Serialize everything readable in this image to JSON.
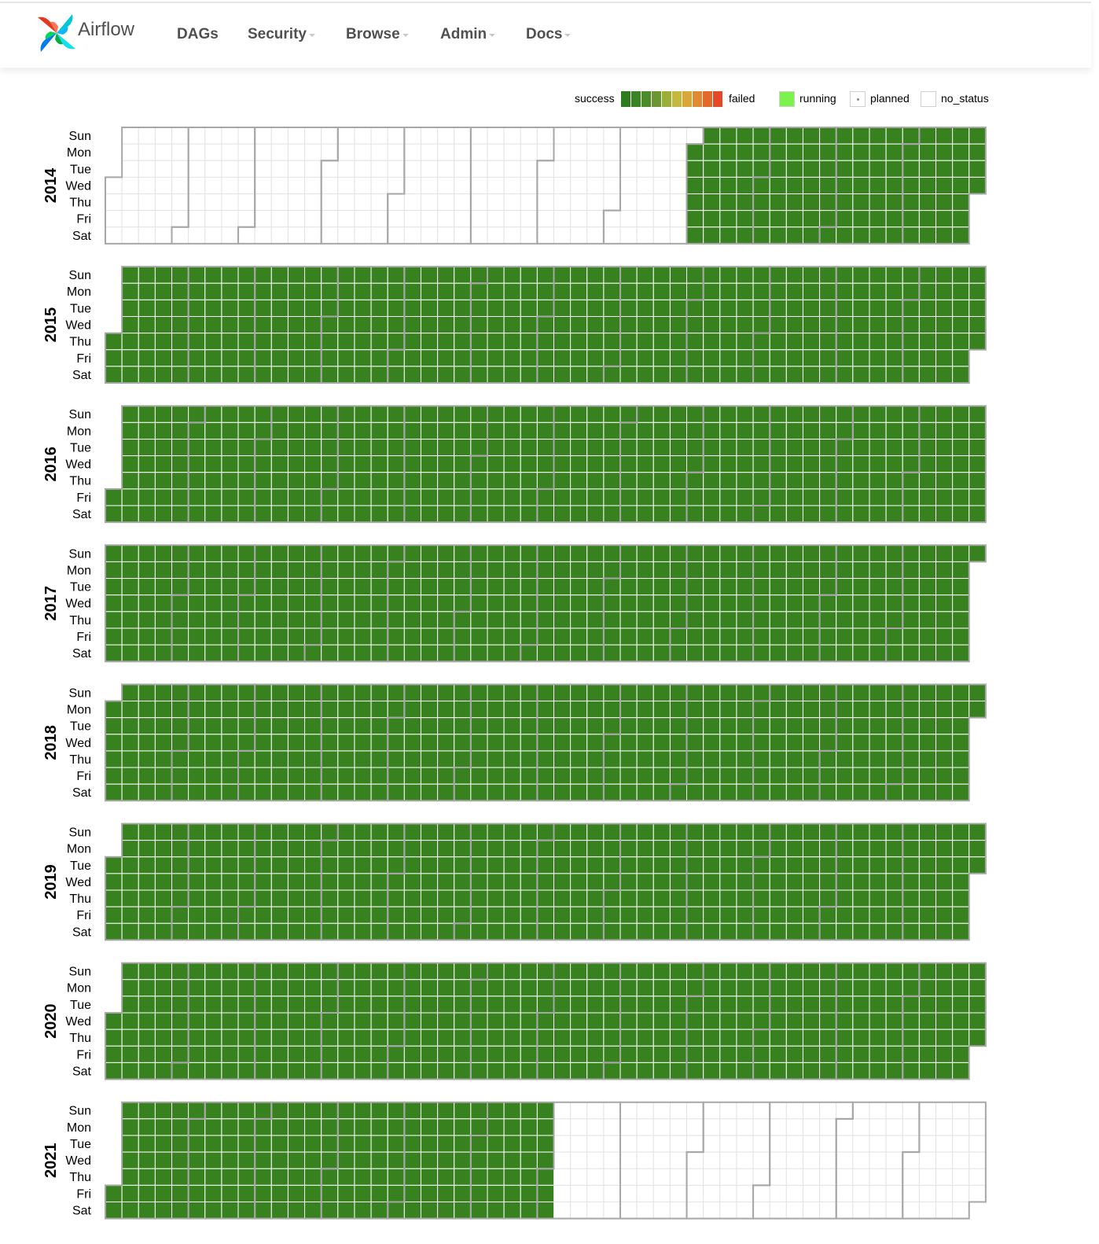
{
  "navbar": {
    "brand": "Airflow",
    "items": [
      {
        "label": "DAGs",
        "dropdown": false
      },
      {
        "label": "Security",
        "dropdown": true
      },
      {
        "label": "Browse",
        "dropdown": true
      },
      {
        "label": "Admin",
        "dropdown": true
      },
      {
        "label": "Docs",
        "dropdown": true
      }
    ]
  },
  "legend": {
    "success": "success",
    "failed": "failed",
    "running": "running",
    "planned": "planned",
    "no_status": "no_status",
    "gradient_colors": [
      "#2d7d1f",
      "#3a8424",
      "#4a8b2a",
      "#6a9730",
      "#9cae3a",
      "#c4b93d",
      "#d9a63a",
      "#e08a33",
      "#e3682c",
      "#e64827"
    ]
  },
  "colors": {
    "success": "#37821f",
    "running": "#7cf24c",
    "empty": "#ffffff",
    "cell_border": "#ffffff",
    "empty_cell_border": "#e3e3e3",
    "month_border": "#a7a7a7",
    "brand_text": "#51504f"
  },
  "calendar": {
    "weekday_labels": [
      "Sun",
      "Mon",
      "Tue",
      "Wed",
      "Thu",
      "Fri",
      "Sat"
    ],
    "years": [
      {
        "year": "2014",
        "first_run_date": "2014-09-01",
        "last_run_date": "2014-12-31"
      },
      {
        "year": "2015",
        "first_run_date": "2015-01-01",
        "last_run_date": "2015-12-31"
      },
      {
        "year": "2016",
        "first_run_date": "2016-01-01",
        "last_run_date": "2016-12-31"
      },
      {
        "year": "2017",
        "first_run_date": "2017-01-01",
        "last_run_date": "2017-12-31"
      },
      {
        "year": "2018",
        "first_run_date": "2018-01-01",
        "last_run_date": "2018-12-31"
      },
      {
        "year": "2019",
        "first_run_date": "2019-01-01",
        "last_run_date": "2019-12-31"
      },
      {
        "year": "2020",
        "first_run_date": "2020-01-01",
        "last_run_date": "2020-12-31"
      },
      {
        "year": "2021",
        "first_run_date": "2021-01-01",
        "last_run_date": "2021-07-03"
      }
    ],
    "run_state": "success"
  }
}
